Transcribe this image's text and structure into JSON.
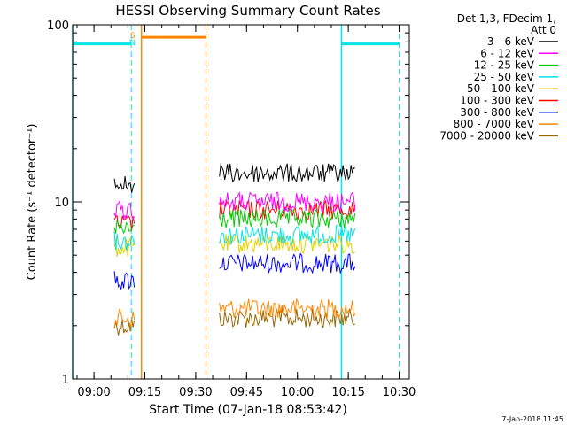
{
  "chart_data": {
    "type": "line",
    "title": "HESSI Observing Summary Count Rates",
    "xlabel": "Start Time (07-Jan-18 08:53:42)",
    "ylabel": "Count Rate (s⁻¹ detector⁻¹)",
    "yscale": "log",
    "ylim": [
      1,
      100
    ],
    "xlim": [
      "08:53:42",
      "10:33:00"
    ],
    "x_ticks": [
      "09:00",
      "09:15",
      "09:30",
      "09:45",
      "10:00",
      "10:15",
      "10:30"
    ],
    "y_ticks": [
      "1",
      "10",
      "100"
    ],
    "legend": {
      "title_line1": "Det 1,3, FDecim 1,",
      "title_line2": "Att 0",
      "placement": "right",
      "entries": [
        {
          "label": "3 - 6 keV",
          "color": "#000000"
        },
        {
          "label": "6 - 12 keV",
          "color": "#ff00ff"
        },
        {
          "label": "12 - 25 keV",
          "color": "#00cc00"
        },
        {
          "label": "25 - 50 keV",
          "color": "#00e5e5"
        },
        {
          "label": "50 - 100 keV",
          "color": "#e6d000"
        },
        {
          "label": "100 - 300 keV",
          "color": "#ff0000"
        },
        {
          "label": "300 - 800 keV",
          "color": "#0000ff"
        },
        {
          "label": "800 - 7000 keV",
          "color": "#ff8800"
        },
        {
          "label": "7000 - 20000 keV",
          "color": "#996600"
        }
      ]
    },
    "flags": [
      {
        "label": "S",
        "color": "#ff8800"
      },
      {
        "label": "N",
        "color": "#00e5e5"
      }
    ],
    "series": [
      {
        "name": "3 - 6 keV",
        "color": "#000000",
        "segments": [
          {
            "x": [
              "09:06",
              "09:12"
            ],
            "y": 12.5
          },
          {
            "x": [
              "09:37",
              "10:17"
            ],
            "y": 14.5
          }
        ]
      },
      {
        "name": "6 - 12 keV",
        "color": "#ff00ff",
        "segments": [
          {
            "x": [
              "09:06",
              "09:12"
            ],
            "y": 9.0
          },
          {
            "x": [
              "09:37",
              "10:17"
            ],
            "y": 10.0
          }
        ]
      },
      {
        "name": "12 - 25 keV",
        "color": "#00cc00",
        "segments": [
          {
            "x": [
              "09:06",
              "09:12"
            ],
            "y": 7.0
          },
          {
            "x": [
              "09:37",
              "10:17"
            ],
            "y": 8.0
          }
        ]
      },
      {
        "name": "25 - 50 keV",
        "color": "#00e5e5",
        "segments": [
          {
            "x": [
              "09:06",
              "09:12"
            ],
            "y": 6.0
          },
          {
            "x": [
              "09:37",
              "10:17"
            ],
            "y": 6.5
          }
        ]
      },
      {
        "name": "50 - 100 keV",
        "color": "#e6d000",
        "segments": [
          {
            "x": [
              "09:06",
              "09:12"
            ],
            "y": 5.5
          },
          {
            "x": [
              "09:37",
              "10:17"
            ],
            "y": 5.8
          }
        ]
      },
      {
        "name": "100 - 300 keV",
        "color": "#ff0000",
        "segments": [
          {
            "x": [
              "09:06",
              "09:12"
            ],
            "y": 7.5
          },
          {
            "x": [
              "09:37",
              "10:17"
            ],
            "y": 9.0
          }
        ]
      },
      {
        "name": "300 - 800 keV",
        "color": "#0000ff",
        "segments": [
          {
            "x": [
              "09:06",
              "09:12"
            ],
            "y": 3.6
          },
          {
            "x": [
              "09:37",
              "10:17"
            ],
            "y": 4.5
          }
        ]
      },
      {
        "name": "800 - 7000 keV",
        "color": "#ff8800",
        "segments": [
          {
            "x": [
              "09:06",
              "09:12"
            ],
            "y": 2.2
          },
          {
            "x": [
              "09:37",
              "10:17"
            ],
            "y": 2.5
          }
        ]
      },
      {
        "name": "7000 - 20000 keV",
        "color": "#996600",
        "segments": [
          {
            "x": [
              "09:06",
              "09:12"
            ],
            "y": 2.0
          },
          {
            "x": [
              "09:37",
              "10:17"
            ],
            "y": 2.2
          }
        ]
      }
    ],
    "intervals": [
      {
        "color": "#00e5e5",
        "y": 78,
        "spans": [
          [
            "08:53:42",
            "09:11"
          ],
          [
            "10:13",
            "10:30"
          ]
        ],
        "dashed_edges": [
          "09:11",
          "10:30"
        ],
        "solid_edges": [
          "08:53:42",
          "10:13"
        ]
      },
      {
        "color": "#ff8800",
        "y": 85,
        "spans": [
          [
            "09:14",
            "09:33"
          ]
        ],
        "dashed_edges": [
          "09:33"
        ],
        "solid_edges": [
          "09:14"
        ]
      }
    ]
  },
  "footer": {
    "date_stamp": "7-Jan-2018 11:45"
  }
}
